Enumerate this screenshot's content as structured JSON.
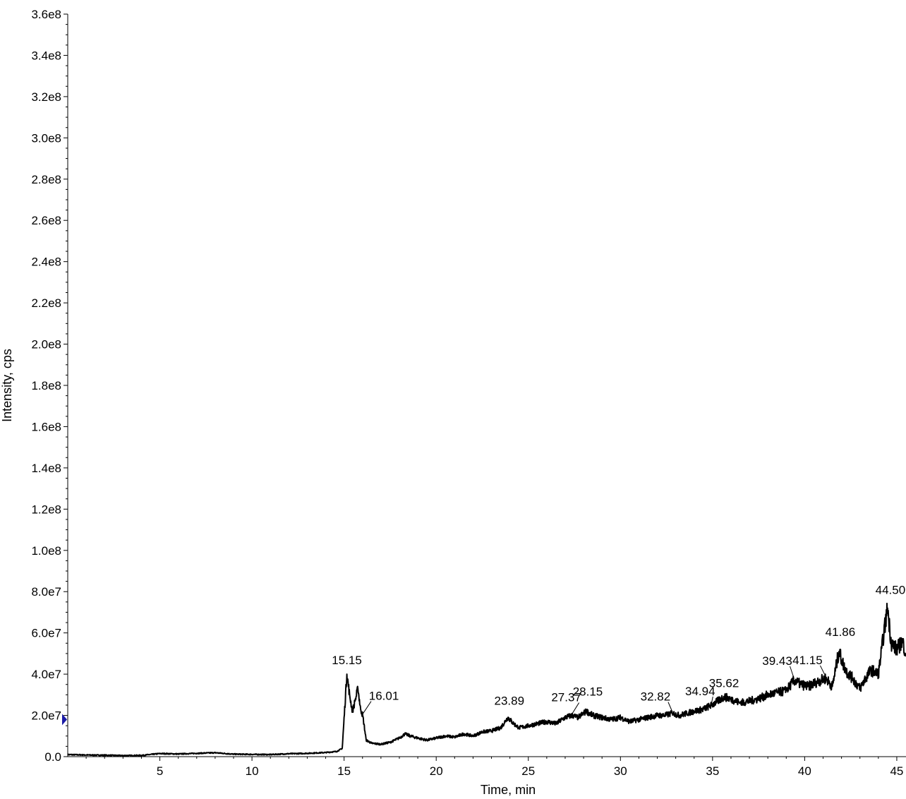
{
  "chart_data": {
    "type": "line",
    "xlabel": "Time, min",
    "ylabel": "Intensity, cps",
    "xlim": [
      0,
      45.5
    ],
    "ylim": [
      0,
      360000000
    ],
    "x_ticks": [
      {
        "value": 5,
        "label": "5"
      },
      {
        "value": 10,
        "label": "10"
      },
      {
        "value": 15,
        "label": "15"
      },
      {
        "value": 20,
        "label": "20"
      },
      {
        "value": 25,
        "label": "25"
      },
      {
        "value": 30,
        "label": "30"
      },
      {
        "value": 35,
        "label": "35"
      },
      {
        "value": 40,
        "label": "40"
      },
      {
        "value": 45,
        "label": "45"
      }
    ],
    "y_ticks": [
      {
        "value": 0,
        "label": "0.0"
      },
      {
        "value": 20000000,
        "label": "2.0e7"
      },
      {
        "value": 40000000,
        "label": "4.0e7"
      },
      {
        "value": 60000000,
        "label": "6.0e7"
      },
      {
        "value": 80000000,
        "label": "8.0e7"
      },
      {
        "value": 100000000,
        "label": "1.0e8"
      },
      {
        "value": 120000000,
        "label": "1.2e8"
      },
      {
        "value": 140000000,
        "label": "1.4e8"
      },
      {
        "value": 160000000,
        "label": "1.6e8"
      },
      {
        "value": 180000000,
        "label": "1.8e8"
      },
      {
        "value": 200000000,
        "label": "2.0e8"
      },
      {
        "value": 220000000,
        "label": "2.2e8"
      },
      {
        "value": 240000000,
        "label": "2.4e8"
      },
      {
        "value": 260000000,
        "label": "2.6e8"
      },
      {
        "value": 280000000,
        "label": "2.8e8"
      },
      {
        "value": 300000000,
        "label": "3.0e8"
      },
      {
        "value": 320000000,
        "label": "3.2e8"
      },
      {
        "value": 340000000,
        "label": "3.4e8"
      },
      {
        "value": 360000000,
        "label": "3.6e8"
      }
    ],
    "series": [
      {
        "color": "#000000",
        "x": [
          0.0,
          1.0,
          2.0,
          3.0,
          4.0,
          5.0,
          6.0,
          7.0,
          8.0,
          9.0,
          10.0,
          11.0,
          12.0,
          13.0,
          14.0,
          14.6,
          14.9,
          15.15,
          15.3,
          15.45,
          15.6,
          15.75,
          15.9,
          16.01,
          16.2,
          16.5,
          17.0,
          17.5,
          18.0,
          18.3,
          18.6,
          19.0,
          19.5,
          20.0,
          20.5,
          21.0,
          21.5,
          22.0,
          22.5,
          23.0,
          23.5,
          23.89,
          24.2,
          24.5,
          25.0,
          25.5,
          26.0,
          26.5,
          27.0,
          27.37,
          27.7,
          28.15,
          28.5,
          29.0,
          29.5,
          30.0,
          30.5,
          31.0,
          31.5,
          32.0,
          32.4,
          32.82,
          33.2,
          33.6,
          34.0,
          34.5,
          34.94,
          35.3,
          35.62,
          36.0,
          36.5,
          37.0,
          37.5,
          38.0,
          38.5,
          39.0,
          39.43,
          39.8,
          40.2,
          40.6,
          41.15,
          41.5,
          41.86,
          42.2,
          42.6,
          43.0,
          43.3,
          43.6,
          44.0,
          44.3,
          44.5,
          44.7,
          45.0,
          45.3,
          45.5
        ],
        "y": [
          1000000,
          800000,
          700000,
          500000,
          600000,
          1500000,
          1300000,
          1600000,
          1900000,
          1200000,
          1100000,
          1000000,
          1400000,
          1600000,
          2000000,
          2500000,
          4000000,
          40000000,
          30000000,
          22000000,
          27000000,
          33000000,
          23000000,
          20000000,
          8000000,
          6500000,
          6000000,
          7000000,
          9000000,
          11000000,
          10000000,
          9000000,
          8000000,
          9000000,
          10000000,
          9500000,
          11000000,
          10000000,
          12000000,
          12500000,
          14000000,
          19000000,
          16000000,
          14000000,
          15000000,
          16000000,
          17000000,
          16000000,
          19000000,
          20000000,
          19000000,
          22000000,
          20000000,
          19000000,
          18000000,
          19000000,
          17000000,
          18000000,
          19000000,
          20000000,
          20000000,
          21000000,
          20000000,
          21000000,
          22000000,
          23000000,
          25000000,
          27000000,
          29000000,
          28000000,
          26000000,
          27000000,
          28000000,
          30000000,
          31000000,
          32000000,
          37000000,
          35000000,
          34000000,
          36000000,
          38000000,
          34000000,
          51000000,
          42000000,
          38000000,
          33000000,
          38000000,
          42000000,
          40000000,
          60000000,
          72000000,
          55000000,
          52000000,
          56000000,
          50000000
        ]
      }
    ],
    "peak_labels": [
      {
        "text": "15.15",
        "x": 15.15,
        "y": 40000000
      },
      {
        "text": "16.01",
        "x": 16.01,
        "y": 20000000
      },
      {
        "text": "23.89",
        "x": 23.89,
        "y": 19000000
      },
      {
        "text": "27.37",
        "x": 27.37,
        "y": 20000000
      },
      {
        "text": "28.15",
        "x": 28.15,
        "y": 22000000
      },
      {
        "text": "32.82",
        "x": 32.82,
        "y": 21000000
      },
      {
        "text": "34.94",
        "x": 34.94,
        "y": 25000000
      },
      {
        "text": "35.62",
        "x": 35.62,
        "y": 29000000
      },
      {
        "text": "39.43",
        "x": 39.43,
        "y": 37000000
      },
      {
        "text": "41.15",
        "x": 41.15,
        "y": 38000000
      },
      {
        "text": "41.86",
        "x": 41.86,
        "y": 51000000
      },
      {
        "text": "44.50",
        "x": 44.5,
        "y": 72000000
      }
    ],
    "marker": {
      "y": 18000000,
      "color": "#1a1aa6"
    },
    "grid": false,
    "legend": "none"
  }
}
